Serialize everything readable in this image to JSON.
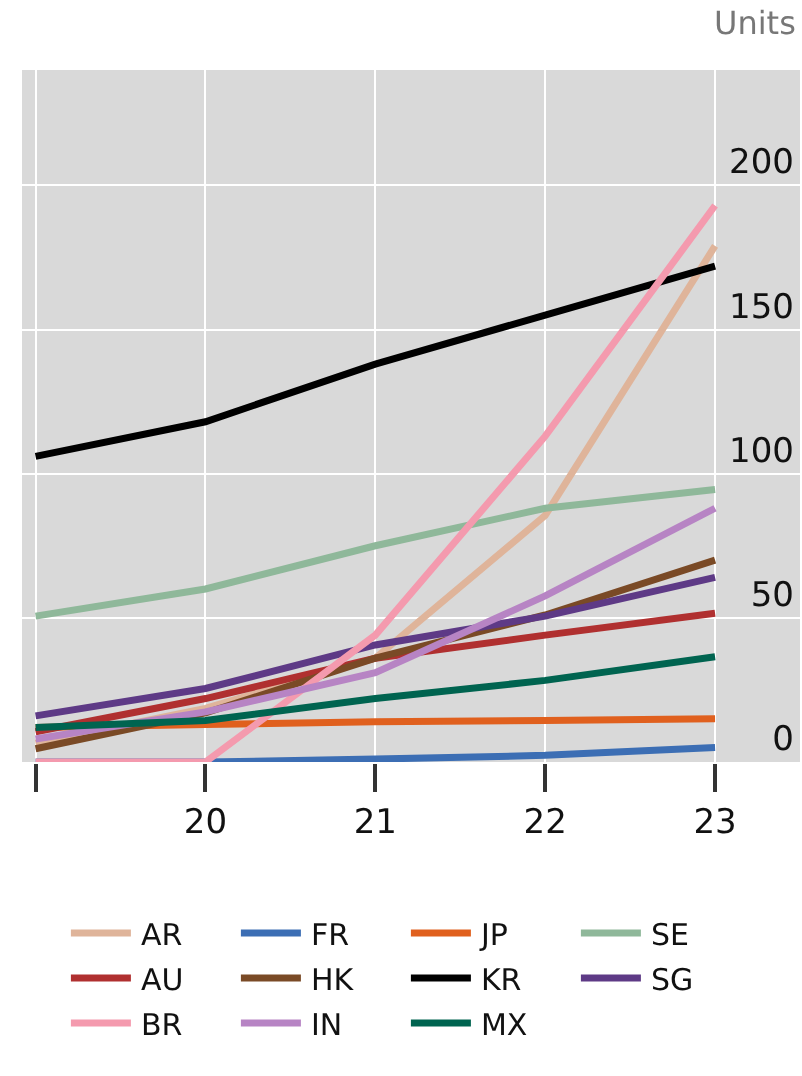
{
  "chart_data": {
    "type": "line",
    "ylabel": "Units",
    "x": [
      19,
      20,
      21,
      22,
      23
    ],
    "xlim": [
      18.92,
      23.5
    ],
    "xticks": [
      {
        "value": 19,
        "label": null
      },
      20,
      21,
      22,
      23
    ],
    "ylim": [
      0,
      240
    ],
    "yticks": [
      0,
      50,
      100,
      150,
      200
    ],
    "grid": true,
    "legend": "bottom",
    "marker": "none",
    "line_style": "solid",
    "series": [
      {
        "name": "AR",
        "color": "#dfb49a",
        "values": [
          6.5,
          18.6,
          36,
          85.5,
          179
        ]
      },
      {
        "name": "FR",
        "color": "#3c6eb4",
        "values": [
          0,
          0,
          1,
          2.3,
          5
        ]
      },
      {
        "name": "JP",
        "color": "#e0601e",
        "values": [
          12,
          13,
          14,
          14.4,
          15
        ]
      },
      {
        "name": "SE",
        "color": "#8fb89a",
        "values": [
          50.6,
          60,
          75,
          88,
          94.5
        ]
      },
      {
        "name": "AU",
        "color": "#b03030",
        "values": [
          10.5,
          22,
          36,
          44,
          51.6
        ]
      },
      {
        "name": "HK",
        "color": "#7a4a26",
        "values": [
          4.6,
          17,
          36,
          51,
          70
        ]
      },
      {
        "name": "KR",
        "color": "#000000",
        "values": [
          106,
          118,
          138,
          155,
          172
        ]
      },
      {
        "name": "SG",
        "color": "#5e3a86",
        "values": [
          16,
          25.5,
          40.6,
          50.6,
          64
        ]
      },
      {
        "name": "BR",
        "color": "#f49aae",
        "values": [
          0,
          0,
          44,
          113,
          193
        ]
      },
      {
        "name": "IN",
        "color": "#b784c4",
        "values": [
          8,
          17.4,
          31,
          57.6,
          88
        ]
      },
      {
        "name": "MX",
        "color": "#006450",
        "values": [
          12,
          14.4,
          22,
          28.3,
          36.5
        ]
      }
    ]
  }
}
